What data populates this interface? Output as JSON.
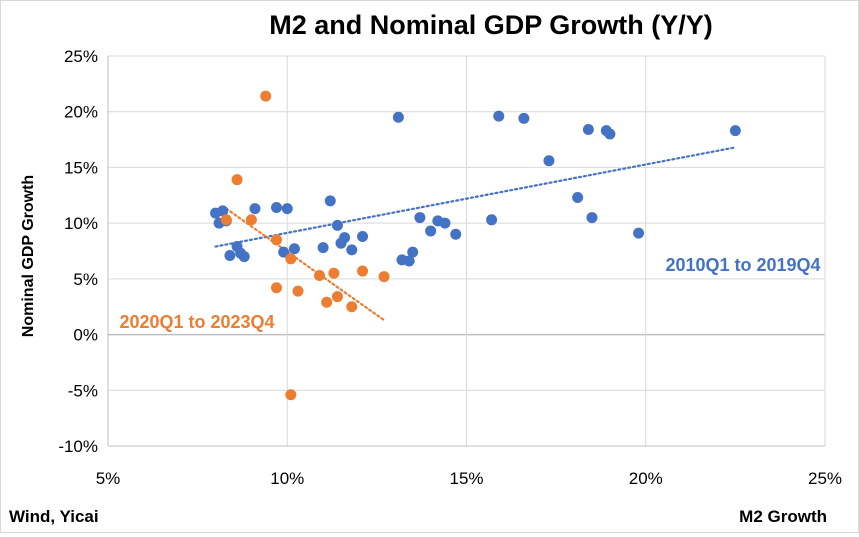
{
  "chart_data": {
    "type": "scatter",
    "title": "M2 and Nominal GDP Growth (Y/Y)",
    "xlabel": "M2 Growth",
    "ylabel": "Nominal GDP Growth",
    "source": "Wind, Yicai",
    "xlim": [
      0.05,
      0.25
    ],
    "ylim": [
      -0.1,
      0.25
    ],
    "x_ticks": [
      0.05,
      0.1,
      0.15,
      0.2,
      0.25
    ],
    "y_ticks": [
      -0.1,
      -0.05,
      0.0,
      0.05,
      0.1,
      0.15,
      0.2,
      0.25
    ],
    "x_tick_labels": [
      "5%",
      "10%",
      "15%",
      "20%",
      "25%"
    ],
    "y_tick_labels": [
      "-10%",
      "-5%",
      "0%",
      "5%",
      "10%",
      "15%",
      "20%",
      "25%"
    ],
    "grid": "horizontal",
    "series": [
      {
        "label": "2010Q1 to 2019Q4",
        "color": "#4472c4",
        "trendline": {
          "x": [
            0.08,
            0.225
          ],
          "y": [
            0.079,
            0.168
          ]
        },
        "points": [
          [
            0.08,
            0.109
          ],
          [
            0.081,
            0.1
          ],
          [
            0.082,
            0.111
          ],
          [
            0.083,
            0.102
          ],
          [
            0.084,
            0.071
          ],
          [
            0.086,
            0.079
          ],
          [
            0.087,
            0.073
          ],
          [
            0.088,
            0.07
          ],
          [
            0.091,
            0.113
          ],
          [
            0.097,
            0.114
          ],
          [
            0.099,
            0.074
          ],
          [
            0.1,
            0.113
          ],
          [
            0.102,
            0.077
          ],
          [
            0.11,
            0.078
          ],
          [
            0.112,
            0.12
          ],
          [
            0.114,
            0.098
          ],
          [
            0.115,
            0.082
          ],
          [
            0.116,
            0.087
          ],
          [
            0.118,
            0.076
          ],
          [
            0.121,
            0.088
          ],
          [
            0.131,
            0.195
          ],
          [
            0.132,
            0.067
          ],
          [
            0.134,
            0.066
          ],
          [
            0.135,
            0.074
          ],
          [
            0.137,
            0.105
          ],
          [
            0.14,
            0.093
          ],
          [
            0.142,
            0.102
          ],
          [
            0.144,
            0.1
          ],
          [
            0.147,
            0.09
          ],
          [
            0.157,
            0.103
          ],
          [
            0.159,
            0.196
          ],
          [
            0.166,
            0.194
          ],
          [
            0.173,
            0.156
          ],
          [
            0.181,
            0.123
          ],
          [
            0.184,
            0.184
          ],
          [
            0.185,
            0.105
          ],
          [
            0.189,
            0.183
          ],
          [
            0.19,
            0.18
          ],
          [
            0.198,
            0.091
          ],
          [
            0.225,
            0.183
          ]
        ]
      },
      {
        "label": "2020Q1 to 2023Q4",
        "color": "#ed7d31",
        "trendline": {
          "x": [
            0.083,
            0.127
          ],
          "y": [
            0.113,
            0.013
          ]
        },
        "points": [
          [
            0.083,
            0.103
          ],
          [
            0.086,
            0.139
          ],
          [
            0.09,
            0.103
          ],
          [
            0.094,
            0.214
          ],
          [
            0.097,
            0.085
          ],
          [
            0.097,
            0.042
          ],
          [
            0.101,
            0.068
          ],
          [
            0.101,
            -0.054
          ],
          [
            0.103,
            0.039
          ],
          [
            0.109,
            0.053
          ],
          [
            0.111,
            0.029
          ],
          [
            0.113,
            0.055
          ],
          [
            0.114,
            0.034
          ],
          [
            0.118,
            0.025
          ],
          [
            0.121,
            0.057
          ],
          [
            0.127,
            0.052
          ]
        ]
      }
    ]
  }
}
